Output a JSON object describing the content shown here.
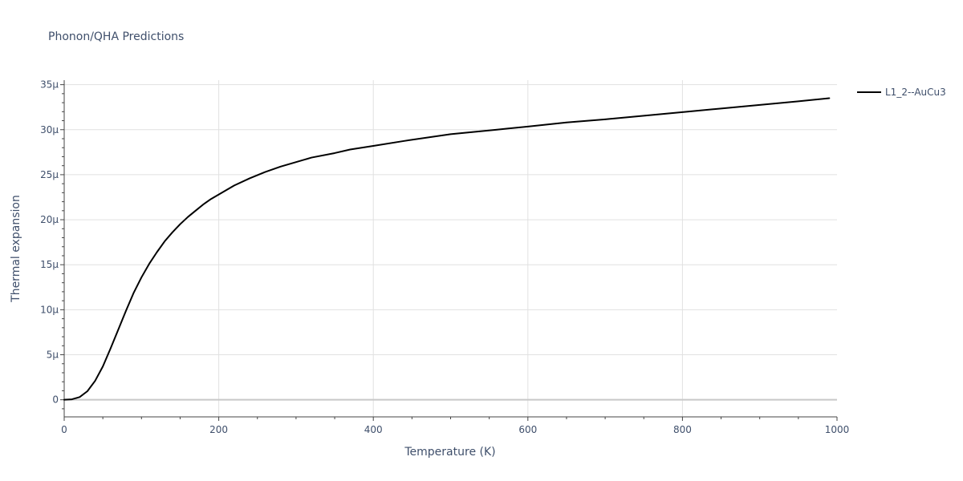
{
  "chart_data": {
    "type": "line",
    "title": "Phonon/QHA Predictions",
    "xlabel": "Temperature (K)",
    "ylabel": "Thermal expansion",
    "xlim": [
      0,
      1000
    ],
    "ylim": [
      -1.9e-06,
      3.55e-05
    ],
    "grid": true,
    "legend_position": "top-right",
    "x_ticks": [
      {
        "value": 0,
        "label": "0"
      },
      {
        "value": 200,
        "label": "200"
      },
      {
        "value": 400,
        "label": "400"
      },
      {
        "value": 600,
        "label": "600"
      },
      {
        "value": 800,
        "label": "800"
      },
      {
        "value": 1000,
        "label": "1000"
      }
    ],
    "y_ticks": [
      {
        "value": 0,
        "label": "0"
      },
      {
        "value": 5e-06,
        "label": "5μ"
      },
      {
        "value": 1e-05,
        "label": "10μ"
      },
      {
        "value": 1.5e-05,
        "label": "15μ"
      },
      {
        "value": 2e-05,
        "label": "20μ"
      },
      {
        "value": 2.5e-05,
        "label": "25μ"
      },
      {
        "value": 3e-05,
        "label": "30μ"
      },
      {
        "value": 3.5e-05,
        "label": "35μ"
      }
    ],
    "series": [
      {
        "name": "L1_2--AuCu3",
        "color": "#000000",
        "x": [
          0,
          10,
          20,
          30,
          40,
          50,
          60,
          70,
          80,
          90,
          100,
          110,
          120,
          130,
          140,
          150,
          160,
          170,
          180,
          190,
          200,
          220,
          240,
          260,
          280,
          300,
          320,
          350,
          370,
          400,
          440,
          500,
          560,
          600,
          650,
          700,
          750,
          800,
          850,
          900,
          950,
          990
        ],
        "y": [
          0,
          5e-08,
          3e-07,
          9.5e-07,
          2.1e-06,
          3.7e-06,
          5.7e-06,
          7.8e-06,
          9.9e-06,
          1.19e-05,
          1.36e-05,
          1.51e-05,
          1.64e-05,
          1.76e-05,
          1.86e-05,
          1.95e-05,
          2.03e-05,
          2.1e-05,
          2.17e-05,
          2.23e-05,
          2.28e-05,
          2.38e-05,
          2.46e-05,
          2.53e-05,
          2.59e-05,
          2.64e-05,
          2.69e-05,
          2.74e-05,
          2.78e-05,
          2.82e-05,
          2.875e-05,
          2.95e-05,
          3e-05,
          3.035e-05,
          3.08e-05,
          3.115e-05,
          3.155e-05,
          3.195e-05,
          3.235e-05,
          3.275e-05,
          3.315e-05,
          3.35e-05
        ]
      }
    ]
  }
}
